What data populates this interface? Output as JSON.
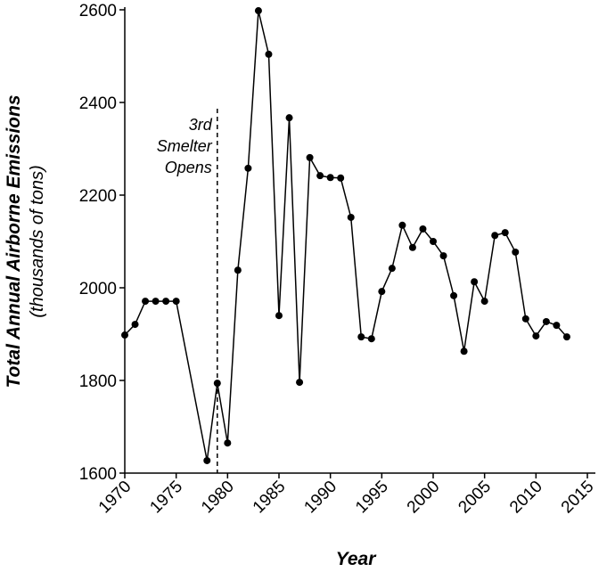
{
  "chart_data": {
    "type": "line",
    "x_label": "Year",
    "y_label": "Total Annual Airborne Emissions",
    "y_sublabel": "(thousands of tons)",
    "x": [
      1970,
      1971,
      1972,
      1973,
      1974,
      1975,
      1978,
      1979,
      1980,
      1981,
      1982,
      1983,
      1984,
      1985,
      1986,
      1987,
      1988,
      1989,
      1990,
      1991,
      1992,
      1993,
      1994,
      1995,
      1996,
      1997,
      1998,
      1999,
      2000,
      2001,
      2002,
      2003,
      2004,
      2005,
      2006,
      2007,
      2008,
      2009,
      2010,
      2011,
      2012,
      2013
    ],
    "series": [
      {
        "color": "#000000",
        "values": [
          1898,
          1921,
          1971,
          1971,
          1971,
          1971,
          1627,
          1794,
          1665,
          2038,
          2258,
          2598,
          2504,
          1940,
          2367,
          1796,
          2281,
          2242,
          2238,
          2237,
          2152,
          1894,
          1890,
          1992,
          2042,
          2135,
          2087,
          2127,
          2100,
          2069,
          1983,
          1863,
          2013,
          1971,
          2113,
          2119,
          2077,
          1933,
          1896,
          1927,
          1919,
          1894
        ]
      }
    ],
    "xlim": [
      1970,
      2015
    ],
    "xticks": [
      1970,
      1975,
      1980,
      1985,
      1990,
      1995,
      2000,
      2005,
      2010,
      2015
    ],
    "ylim": [
      1600,
      2600
    ],
    "yticks": [
      1600,
      1800,
      2000,
      2200,
      2400,
      2600
    ],
    "grid": false,
    "annotation": {
      "x": 1979,
      "lines": [
        "3rd",
        "Smelter",
        "Opens"
      ]
    }
  }
}
